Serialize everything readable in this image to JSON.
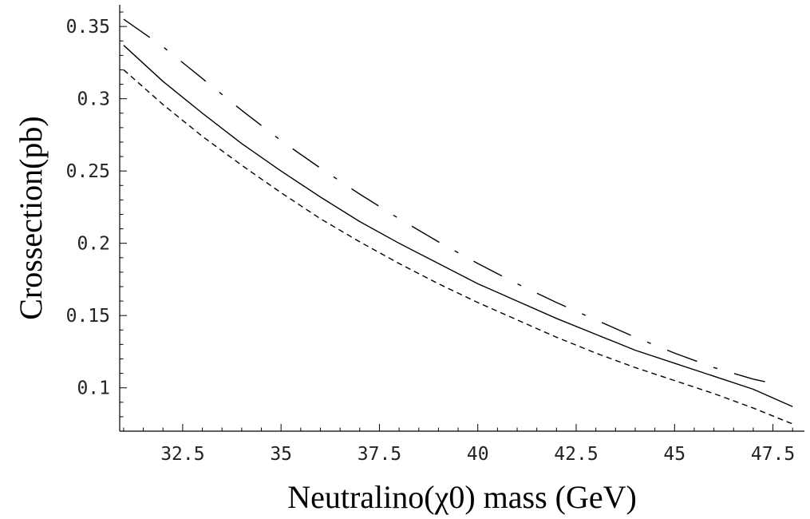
{
  "chart_data": {
    "type": "line",
    "title": "",
    "xlabel": "Neutralino(χ0) mass (GeV)",
    "ylabel": "Crossection(pb)",
    "xlim": [
      30.9,
      48.3
    ],
    "ylim": [
      0.07,
      0.365
    ],
    "x_ticks": [
      32.5,
      35,
      37.5,
      40,
      42.5,
      45,
      47.5
    ],
    "x_tick_labels": [
      "32.5",
      "35",
      "37.5",
      "40",
      "42.5",
      "45",
      "47.5"
    ],
    "y_ticks": [
      0.1,
      0.15,
      0.2,
      0.25,
      0.3,
      0.35
    ],
    "y_tick_labels": [
      "0.1",
      "0.15",
      "0.2",
      "0.25",
      "0.3",
      "0.35"
    ],
    "grid": false,
    "legend": "none",
    "series": [
      {
        "style": "solid",
        "color": "#000000",
        "x": [
          31,
          32,
          33,
          34,
          35,
          36,
          37,
          38,
          39,
          40,
          41,
          42,
          43,
          44,
          45,
          46,
          47,
          48
        ],
        "y": [
          0.337,
          0.312,
          0.29,
          0.269,
          0.25,
          0.232,
          0.215,
          0.2,
          0.186,
          0.172,
          0.16,
          0.148,
          0.137,
          0.126,
          0.117,
          0.108,
          0.099,
          0.087
        ]
      },
      {
        "style": "long-dash-dot",
        "color": "#000000",
        "x": [
          31,
          32,
          33,
          34,
          35,
          36,
          37,
          38,
          39,
          40,
          41,
          42,
          43,
          44,
          45,
          46,
          47,
          47.5
        ],
        "y": [
          0.355,
          0.336,
          0.314,
          0.292,
          0.271,
          0.252,
          0.234,
          0.217,
          0.201,
          0.186,
          0.172,
          0.159,
          0.147,
          0.135,
          0.124,
          0.114,
          0.106,
          0.103
        ]
      },
      {
        "style": "short-dash",
        "color": "#000000",
        "x": [
          31,
          32,
          33,
          34,
          35,
          36,
          37,
          38,
          39,
          40,
          41,
          42,
          43,
          44,
          45,
          46,
          47,
          48
        ],
        "y": [
          0.32,
          0.296,
          0.274,
          0.254,
          0.235,
          0.217,
          0.201,
          0.186,
          0.172,
          0.159,
          0.147,
          0.135,
          0.124,
          0.114,
          0.105,
          0.096,
          0.086,
          0.075
        ]
      }
    ]
  }
}
